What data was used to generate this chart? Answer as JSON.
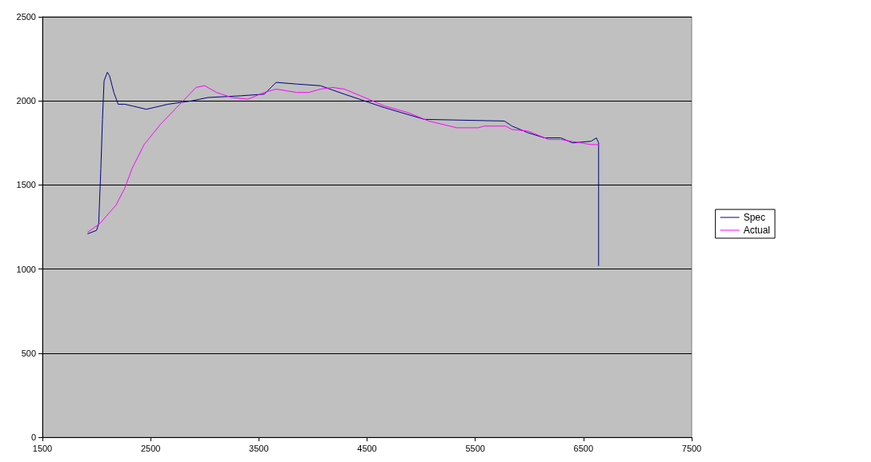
{
  "chart_data": {
    "type": "line",
    "xlim": [
      1500,
      7500
    ],
    "xticks": [
      1500,
      2500,
      3500,
      4500,
      5500,
      6500,
      7500
    ],
    "ylim": [
      0,
      2500
    ],
    "yticks": [
      0,
      500,
      1000,
      1500,
      2000,
      2500
    ],
    "grid": "y",
    "legend": "right",
    "marker": "none",
    "line_style": "solid",
    "series": [
      {
        "name": "Spec",
        "color": "#000080",
        "x": [
          1920,
          2000,
          2020,
          2040,
          2055,
          2070,
          2100,
          2120,
          2160,
          2200,
          2260,
          2330,
          2460,
          2660,
          2880,
          3030,
          3330,
          3550,
          3660,
          3850,
          4070,
          4290,
          4660,
          5030,
          5770,
          5840,
          5990,
          6140,
          6290,
          6400,
          6570,
          6620,
          6640,
          6640
        ],
        "values": [
          1210,
          1230,
          1270,
          1600,
          1890,
          2120,
          2170,
          2150,
          2050,
          1980,
          1980,
          1970,
          1950,
          1980,
          2000,
          2020,
          2030,
          2040,
          2110,
          2100,
          2090,
          2040,
          1960,
          1890,
          1880,
          1850,
          1810,
          1780,
          1780,
          1750,
          1760,
          1780,
          1750,
          1020
        ]
      },
      {
        "name": "Actual",
        "color": "#ff00ff",
        "x": [
          1920,
          2030,
          2180,
          2260,
          2330,
          2440,
          2590,
          2740,
          2920,
          3000,
          3110,
          3250,
          3400,
          3550,
          3660,
          3850,
          3960,
          4070,
          4180,
          4290,
          4440,
          4660,
          4880,
          5070,
          5330,
          5530,
          5580,
          5780,
          5840,
          5990,
          6180,
          6290,
          6570,
          6640
        ],
        "values": [
          1220,
          1270,
          1380,
          1480,
          1600,
          1740,
          1860,
          1960,
          2080,
          2090,
          2050,
          2020,
          2010,
          2050,
          2070,
          2050,
          2050,
          2070,
          2080,
          2070,
          2030,
          1970,
          1930,
          1880,
          1840,
          1840,
          1850,
          1850,
          1830,
          1820,
          1770,
          1770,
          1740,
          1740
        ]
      }
    ]
  }
}
